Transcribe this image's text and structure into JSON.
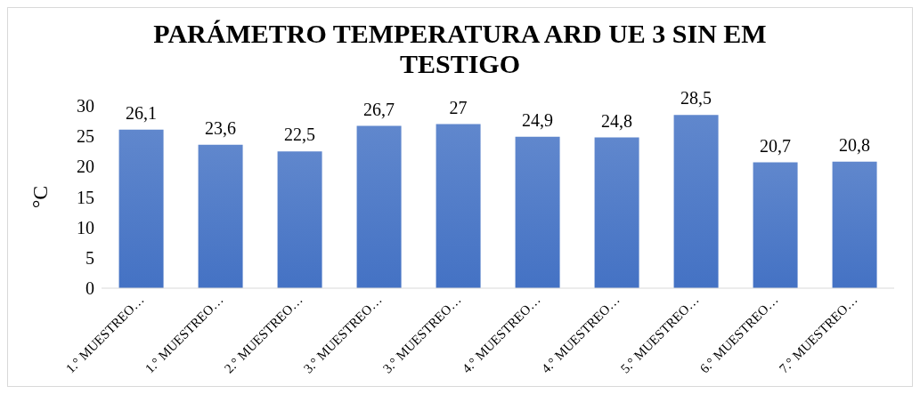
{
  "chart_data": {
    "type": "bar",
    "title": "PARÁMETRO TEMPERATURA ARD UE 3 SIN EM TESTIGO",
    "ylabel": "°C",
    "categories": [
      "1.° MUESTREO…",
      "1.° MUESTREO…",
      "2.° MUESTREO…",
      "3.° MUESTREO…",
      "3.° MUESTREO…",
      "4.° MUESTREO…",
      "4.° MUESTREO…",
      "5.° MUESTREO…",
      "6.° MUESTREO…",
      "7.° MUESTREO…"
    ],
    "values": [
      26.1,
      23.6,
      22.5,
      26.7,
      27,
      24.9,
      24.8,
      28.5,
      20.7,
      20.8
    ],
    "value_labels": [
      "26,1",
      "23,6",
      "22,5",
      "26,7",
      "27",
      "24,9",
      "24,8",
      "28,5",
      "20,7",
      "20,8"
    ],
    "color": "#4472c4",
    "ylim": [
      0,
      30
    ],
    "yticks": [
      0,
      5,
      10,
      15,
      20,
      25,
      30
    ],
    "grid": false,
    "legend": false
  }
}
